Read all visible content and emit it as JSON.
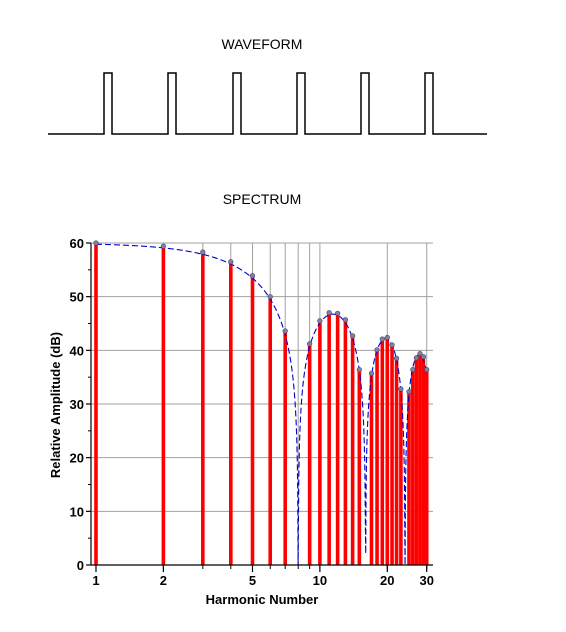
{
  "waveform": {
    "title": "WAVEFORM",
    "type": "pulse-train",
    "pulse_count": 6,
    "duty_cycle": 0.125,
    "color": "#000000"
  },
  "chart_data": {
    "type": "bar",
    "title": "SPECTRUM",
    "xlabel": "Harmonic Number",
    "ylabel": "Relative Amplitude (dB)",
    "x_scale": "log",
    "xlim": [
      0.95,
      32
    ],
    "ylim": [
      0,
      60
    ],
    "x_ticks": [
      1,
      2,
      5,
      10,
      20,
      30
    ],
    "x_tick_labels": [
      "1",
      "2",
      "5",
      "10",
      "20",
      "30"
    ],
    "y_ticks": [
      0,
      10,
      20,
      30,
      40,
      50,
      60
    ],
    "y_tick_labels": [
      "0",
      "10",
      "20",
      "30",
      "40",
      "50",
      "60"
    ],
    "x_grid": [
      1,
      2,
      3,
      4,
      5,
      6,
      7,
      8,
      9,
      10,
      20,
      30
    ],
    "grid": true,
    "bar_color": "#ff0000",
    "envelope_color": "#0000cc",
    "point_color": "#8080a0",
    "duty_cycle": 0.125,
    "harmonics": [
      1,
      2,
      3,
      4,
      5,
      6,
      7,
      9,
      10,
      11,
      12,
      13,
      14,
      15,
      17,
      18,
      19,
      20,
      21,
      22,
      23,
      25,
      26,
      27,
      28,
      29,
      30
    ],
    "values": [
      60.0,
      59.4,
      58.3,
      56.5,
      53.9,
      50.0,
      43.6,
      41.2,
      45.5,
      47.0,
      46.9,
      45.7,
      42.7,
      36.4,
      35.7,
      40.1,
      42.1,
      42.4,
      41.0,
      38.5,
      32.8,
      32.3,
      36.4,
      38.6,
      39.4,
      38.8,
      36.4
    ]
  }
}
